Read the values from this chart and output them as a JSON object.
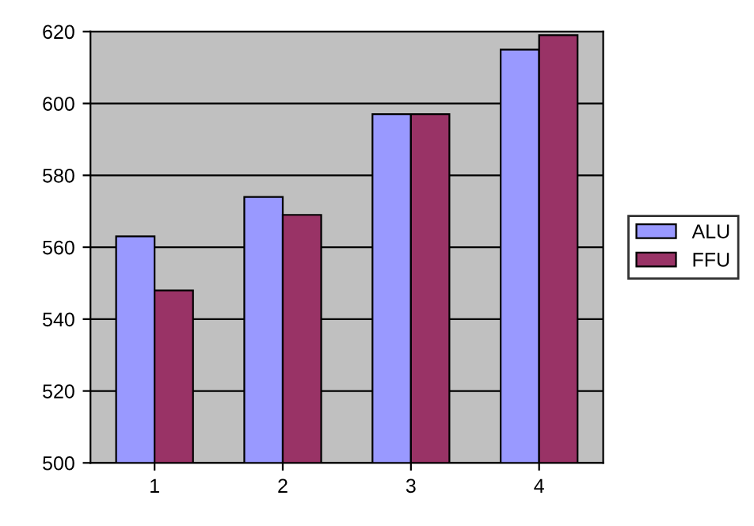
{
  "chart_data": {
    "type": "bar",
    "categories": [
      "1",
      "2",
      "3",
      "4"
    ],
    "series": [
      {
        "name": "ALU",
        "color": "#9999ff",
        "values": [
          563,
          574,
          597,
          615
        ]
      },
      {
        "name": "FFU",
        "color": "#993366",
        "values": [
          548,
          569,
          597,
          619
        ]
      }
    ],
    "ylim": [
      500,
      620
    ],
    "yticks": [
      500,
      520,
      540,
      560,
      580,
      600,
      620
    ],
    "grid": "y",
    "legend": "right"
  }
}
